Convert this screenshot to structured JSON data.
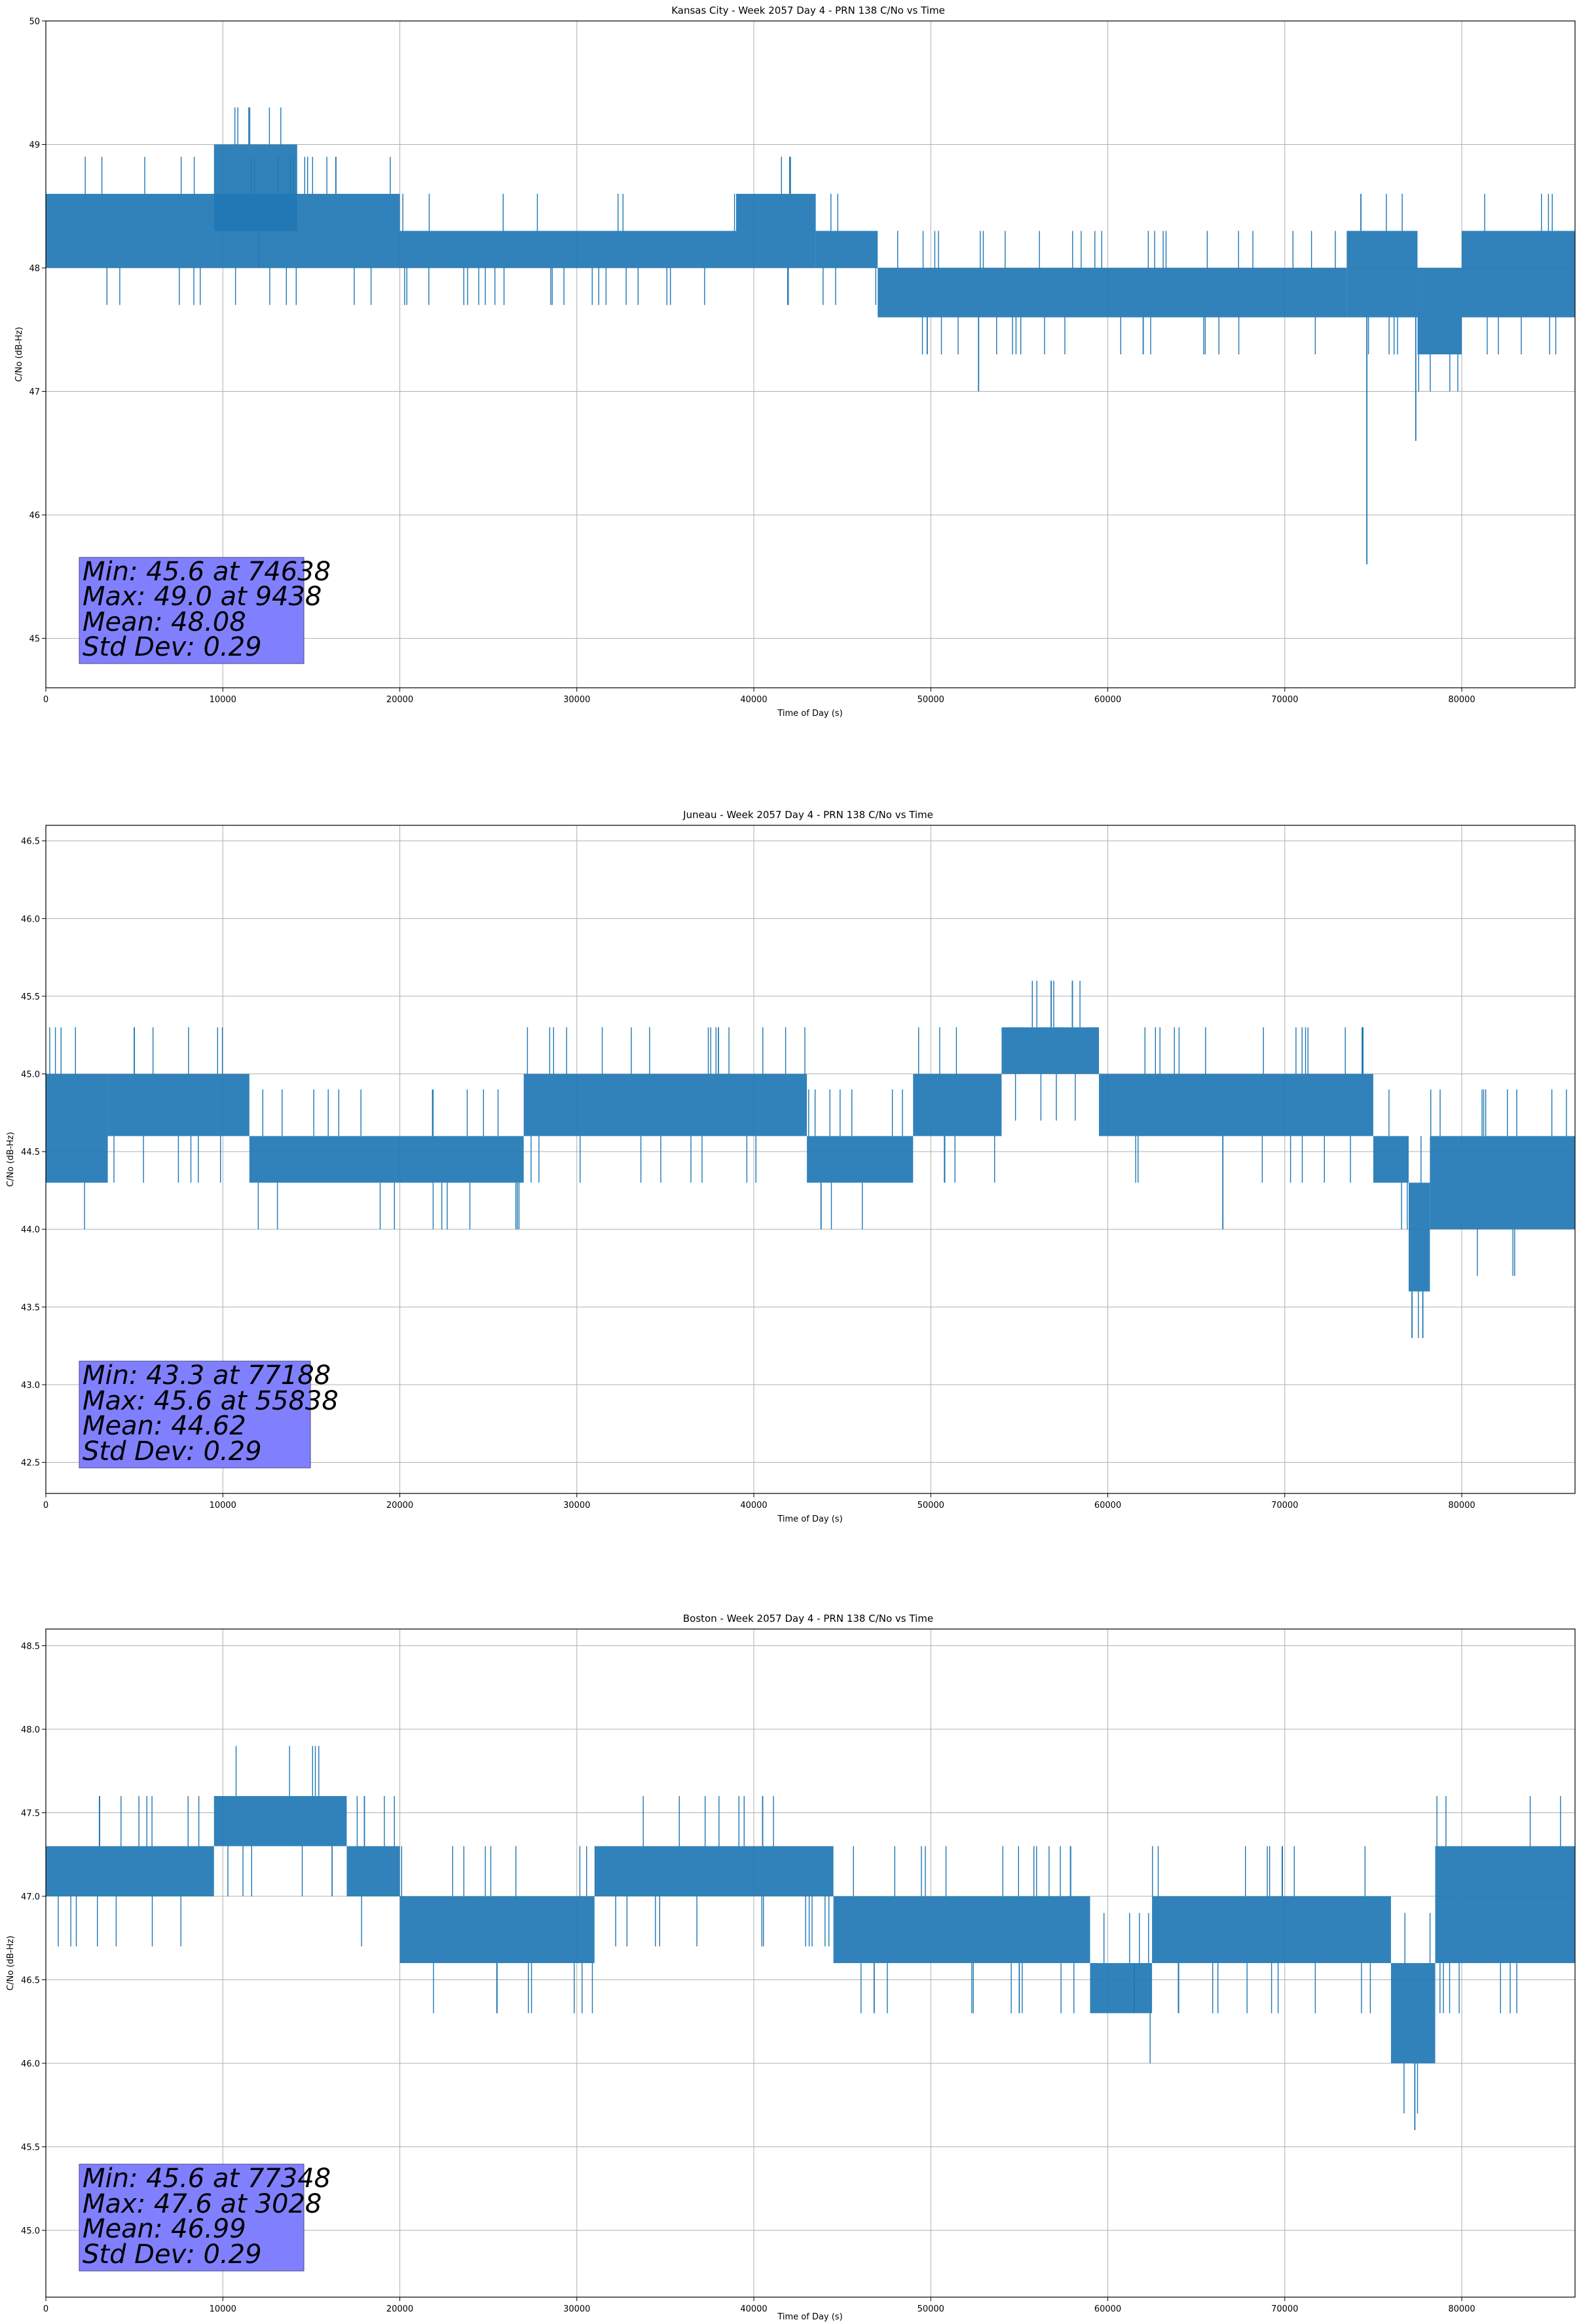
{
  "chart_data": [
    {
      "type": "line",
      "title": "Kansas City - Week 2057 Day 4 - PRN 138 C/No vs Time",
      "xlabel": "Time of Day (s)",
      "ylabel": "C/No (dB-Hz)",
      "xlim": [
        0,
        86400
      ],
      "ylim": [
        44.6,
        50.0
      ],
      "xticks": [
        0,
        10000,
        20000,
        30000,
        40000,
        50000,
        60000,
        70000,
        80000
      ],
      "yticks": [
        45,
        46,
        47,
        48,
        49,
        50
      ],
      "ytick_labels": [
        "45",
        "46",
        "47",
        "48",
        "49",
        "50"
      ],
      "grid": true,
      "series_color": "#1f77b4",
      "levels": [
        {
          "x": [
            0,
            20000
          ],
          "lo": 48.0,
          "hi": 48.6
        },
        {
          "x": [
            9500,
            14200
          ],
          "lo": 48.3,
          "hi": 49.0
        },
        {
          "x": [
            20000,
            39000
          ],
          "lo": 48.0,
          "hi": 48.3
        },
        {
          "x": [
            39000,
            43500
          ],
          "lo": 48.0,
          "hi": 48.6
        },
        {
          "x": [
            43500,
            47000
          ],
          "lo": 48.0,
          "hi": 48.3
        },
        {
          "x": [
            47000,
            73500
          ],
          "lo": 47.6,
          "hi": 48.0
        },
        {
          "x": [
            73500,
            77500
          ],
          "lo": 47.6,
          "hi": 48.3
        },
        {
          "x": [
            77500,
            80000
          ],
          "lo": 47.3,
          "hi": 48.0
        },
        {
          "x": [
            80000,
            86400
          ],
          "lo": 47.6,
          "hi": 48.3
        }
      ],
      "spikes": [
        {
          "x": 74638,
          "v": 45.6
        },
        {
          "x": 77400,
          "v": 46.6
        },
        {
          "x": 52700,
          "v": 47.0
        },
        {
          "x": 49800,
          "v": 47.3
        },
        {
          "x": 62000,
          "v": 47.3
        },
        {
          "x": 74300,
          "v": 48.6
        },
        {
          "x": 1000,
          "v": 48.6
        },
        {
          "x": 10100,
          "v": 49.0
        }
      ],
      "annotation": {
        "min": "Min: 45.6 at 74638",
        "max": "Max: 49.0 at 9438",
        "mean": "Mean: 48.08",
        "std": "Std Dev: 0.29"
      }
    },
    {
      "type": "line",
      "title": "Juneau - Week 2057 Day 4 - PRN 138 C/No vs Time",
      "xlabel": "Time of Day (s)",
      "ylabel": "C/No (dB-Hz)",
      "xlim": [
        0,
        86400
      ],
      "ylim": [
        42.3,
        46.6
      ],
      "xticks": [
        0,
        10000,
        20000,
        30000,
        40000,
        50000,
        60000,
        70000,
        80000
      ],
      "yticks": [
        42.5,
        43.0,
        43.5,
        44.0,
        44.5,
        45.0,
        45.5,
        46.0,
        46.5
      ],
      "ytick_labels": [
        "42.5",
        "43.0",
        "43.5",
        "44.0",
        "44.5",
        "45.0",
        "45.5",
        "46.0",
        "46.5"
      ],
      "grid": true,
      "series_color": "#1f77b4",
      "levels": [
        {
          "x": [
            0,
            3500
          ],
          "lo": 44.3,
          "hi": 45.0
        },
        {
          "x": [
            3500,
            11500
          ],
          "lo": 44.6,
          "hi": 45.0
        },
        {
          "x": [
            11500,
            27000
          ],
          "lo": 44.3,
          "hi": 44.6
        },
        {
          "x": [
            27000,
            43000
          ],
          "lo": 44.6,
          "hi": 45.0
        },
        {
          "x": [
            43000,
            49000
          ],
          "lo": 44.3,
          "hi": 44.6
        },
        {
          "x": [
            49000,
            54000
          ],
          "lo": 44.6,
          "hi": 45.0
        },
        {
          "x": [
            54000,
            59500
          ],
          "lo": 45.0,
          "hi": 45.3
        },
        {
          "x": [
            59500,
            75000
          ],
          "lo": 44.6,
          "hi": 45.0
        },
        {
          "x": [
            75000,
            77000
          ],
          "lo": 44.3,
          "hi": 44.6
        },
        {
          "x": [
            77000,
            78200
          ],
          "lo": 43.6,
          "hi": 44.3
        },
        {
          "x": [
            78200,
            86400
          ],
          "lo": 44.0,
          "hi": 44.6
        }
      ],
      "spikes": [
        {
          "x": 77188,
          "v": 43.3
        },
        {
          "x": 77800,
          "v": 43.3
        },
        {
          "x": 43800,
          "v": 44.0
        },
        {
          "x": 66500,
          "v": 44.0
        },
        {
          "x": 56800,
          "v": 45.6
        },
        {
          "x": 58000,
          "v": 45.6
        },
        {
          "x": 5000,
          "v": 45.3
        },
        {
          "x": 38000,
          "v": 45.3
        }
      ],
      "annotation": {
        "min": "Min: 43.3 at 77188",
        "max": "Max: 45.6 at 55838",
        "mean": "Mean: 44.62",
        "std": "Std Dev: 0.29"
      }
    },
    {
      "type": "line",
      "title": "Boston - Week 2057 Day 4 - PRN 138 C/No vs Time",
      "xlabel": "Time of Day (s)",
      "ylabel": "C/No (dB-Hz)",
      "xlim": [
        0,
        86400
      ],
      "ylim": [
        44.6,
        48.6
      ],
      "xticks": [
        0,
        10000,
        20000,
        30000,
        40000,
        50000,
        60000,
        70000,
        80000
      ],
      "yticks": [
        45.0,
        45.5,
        46.0,
        46.5,
        47.0,
        47.5,
        48.0,
        48.5
      ],
      "ytick_labels": [
        "45.0",
        "45.5",
        "46.0",
        "46.5",
        "47.0",
        "47.5",
        "48.0",
        "48.5"
      ],
      "grid": true,
      "series_color": "#1f77b4",
      "levels": [
        {
          "x": [
            0,
            9500
          ],
          "lo": 47.0,
          "hi": 47.3
        },
        {
          "x": [
            9500,
            17000
          ],
          "lo": 47.3,
          "hi": 47.6
        },
        {
          "x": [
            17000,
            20000
          ],
          "lo": 47.0,
          "hi": 47.3
        },
        {
          "x": [
            20000,
            31000
          ],
          "lo": 46.6,
          "hi": 47.0
        },
        {
          "x": [
            31000,
            44500
          ],
          "lo": 47.0,
          "hi": 47.3
        },
        {
          "x": [
            44500,
            59000
          ],
          "lo": 46.6,
          "hi": 47.0
        },
        {
          "x": [
            59000,
            62500
          ],
          "lo": 46.3,
          "hi": 46.6
        },
        {
          "x": [
            62500,
            76000
          ],
          "lo": 46.6,
          "hi": 47.0
        },
        {
          "x": [
            76000,
            78500
          ],
          "lo": 46.0,
          "hi": 46.6
        },
        {
          "x": [
            78500,
            86400
          ],
          "lo": 46.6,
          "hi": 47.3
        }
      ],
      "spikes": [
        {
          "x": 77348,
          "v": 45.6
        },
        {
          "x": 46800,
          "v": 46.3
        },
        {
          "x": 55000,
          "v": 46.3
        },
        {
          "x": 61500,
          "v": 46.3
        },
        {
          "x": 40500,
          "v": 47.6
        },
        {
          "x": 3028,
          "v": 47.6
        },
        {
          "x": 18000,
          "v": 47.6
        }
      ],
      "annotation": {
        "min": "Min: 45.6 at 77348",
        "max": "Max: 47.6 at 3028",
        "mean": "Mean: 46.99",
        "std": "Std Dev: 0.29"
      }
    }
  ]
}
